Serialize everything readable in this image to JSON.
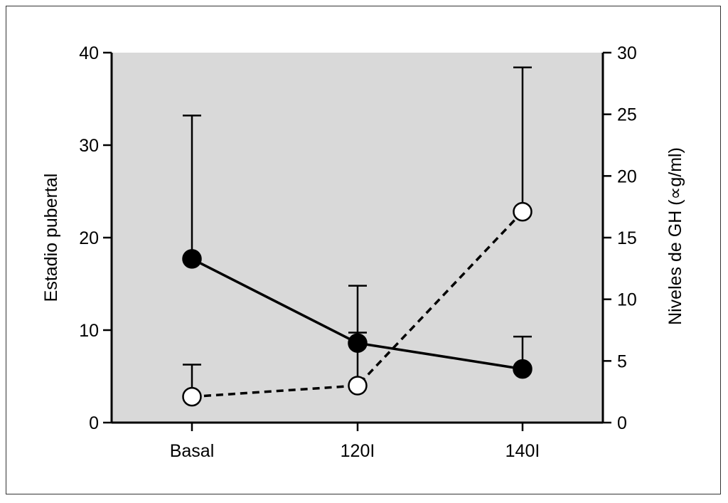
{
  "chart_data": {
    "type": "line",
    "title": "",
    "categories": [
      "Basal",
      "120I",
      "140I"
    ],
    "ylabel_left": "Estadio pubertal",
    "ylabel_right": "Niveles de GH (∝g/ml)",
    "ylim_left": [
      0,
      40
    ],
    "ylim_right": [
      0,
      30
    ],
    "yticks_left": [
      0,
      10,
      20,
      30,
      40
    ],
    "yticks_right": [
      0,
      5,
      10,
      15,
      20,
      25,
      30
    ],
    "background_color": "#d9d9d9",
    "grid": false,
    "legend": "none",
    "series": [
      {
        "axis": "left",
        "marker": "filled-circle",
        "line_style": "solid",
        "color": "#000000",
        "values": [
          17.7,
          8.6,
          5.8
        ],
        "error_upper": [
          33.2,
          14.8,
          9.3
        ]
      },
      {
        "axis": "right",
        "marker": "open-circle",
        "line_style": "dashed",
        "color": "#000000",
        "values": [
          2.1,
          3.0,
          17.1
        ],
        "error_upper": [
          4.7,
          7.3,
          28.8
        ]
      }
    ]
  }
}
